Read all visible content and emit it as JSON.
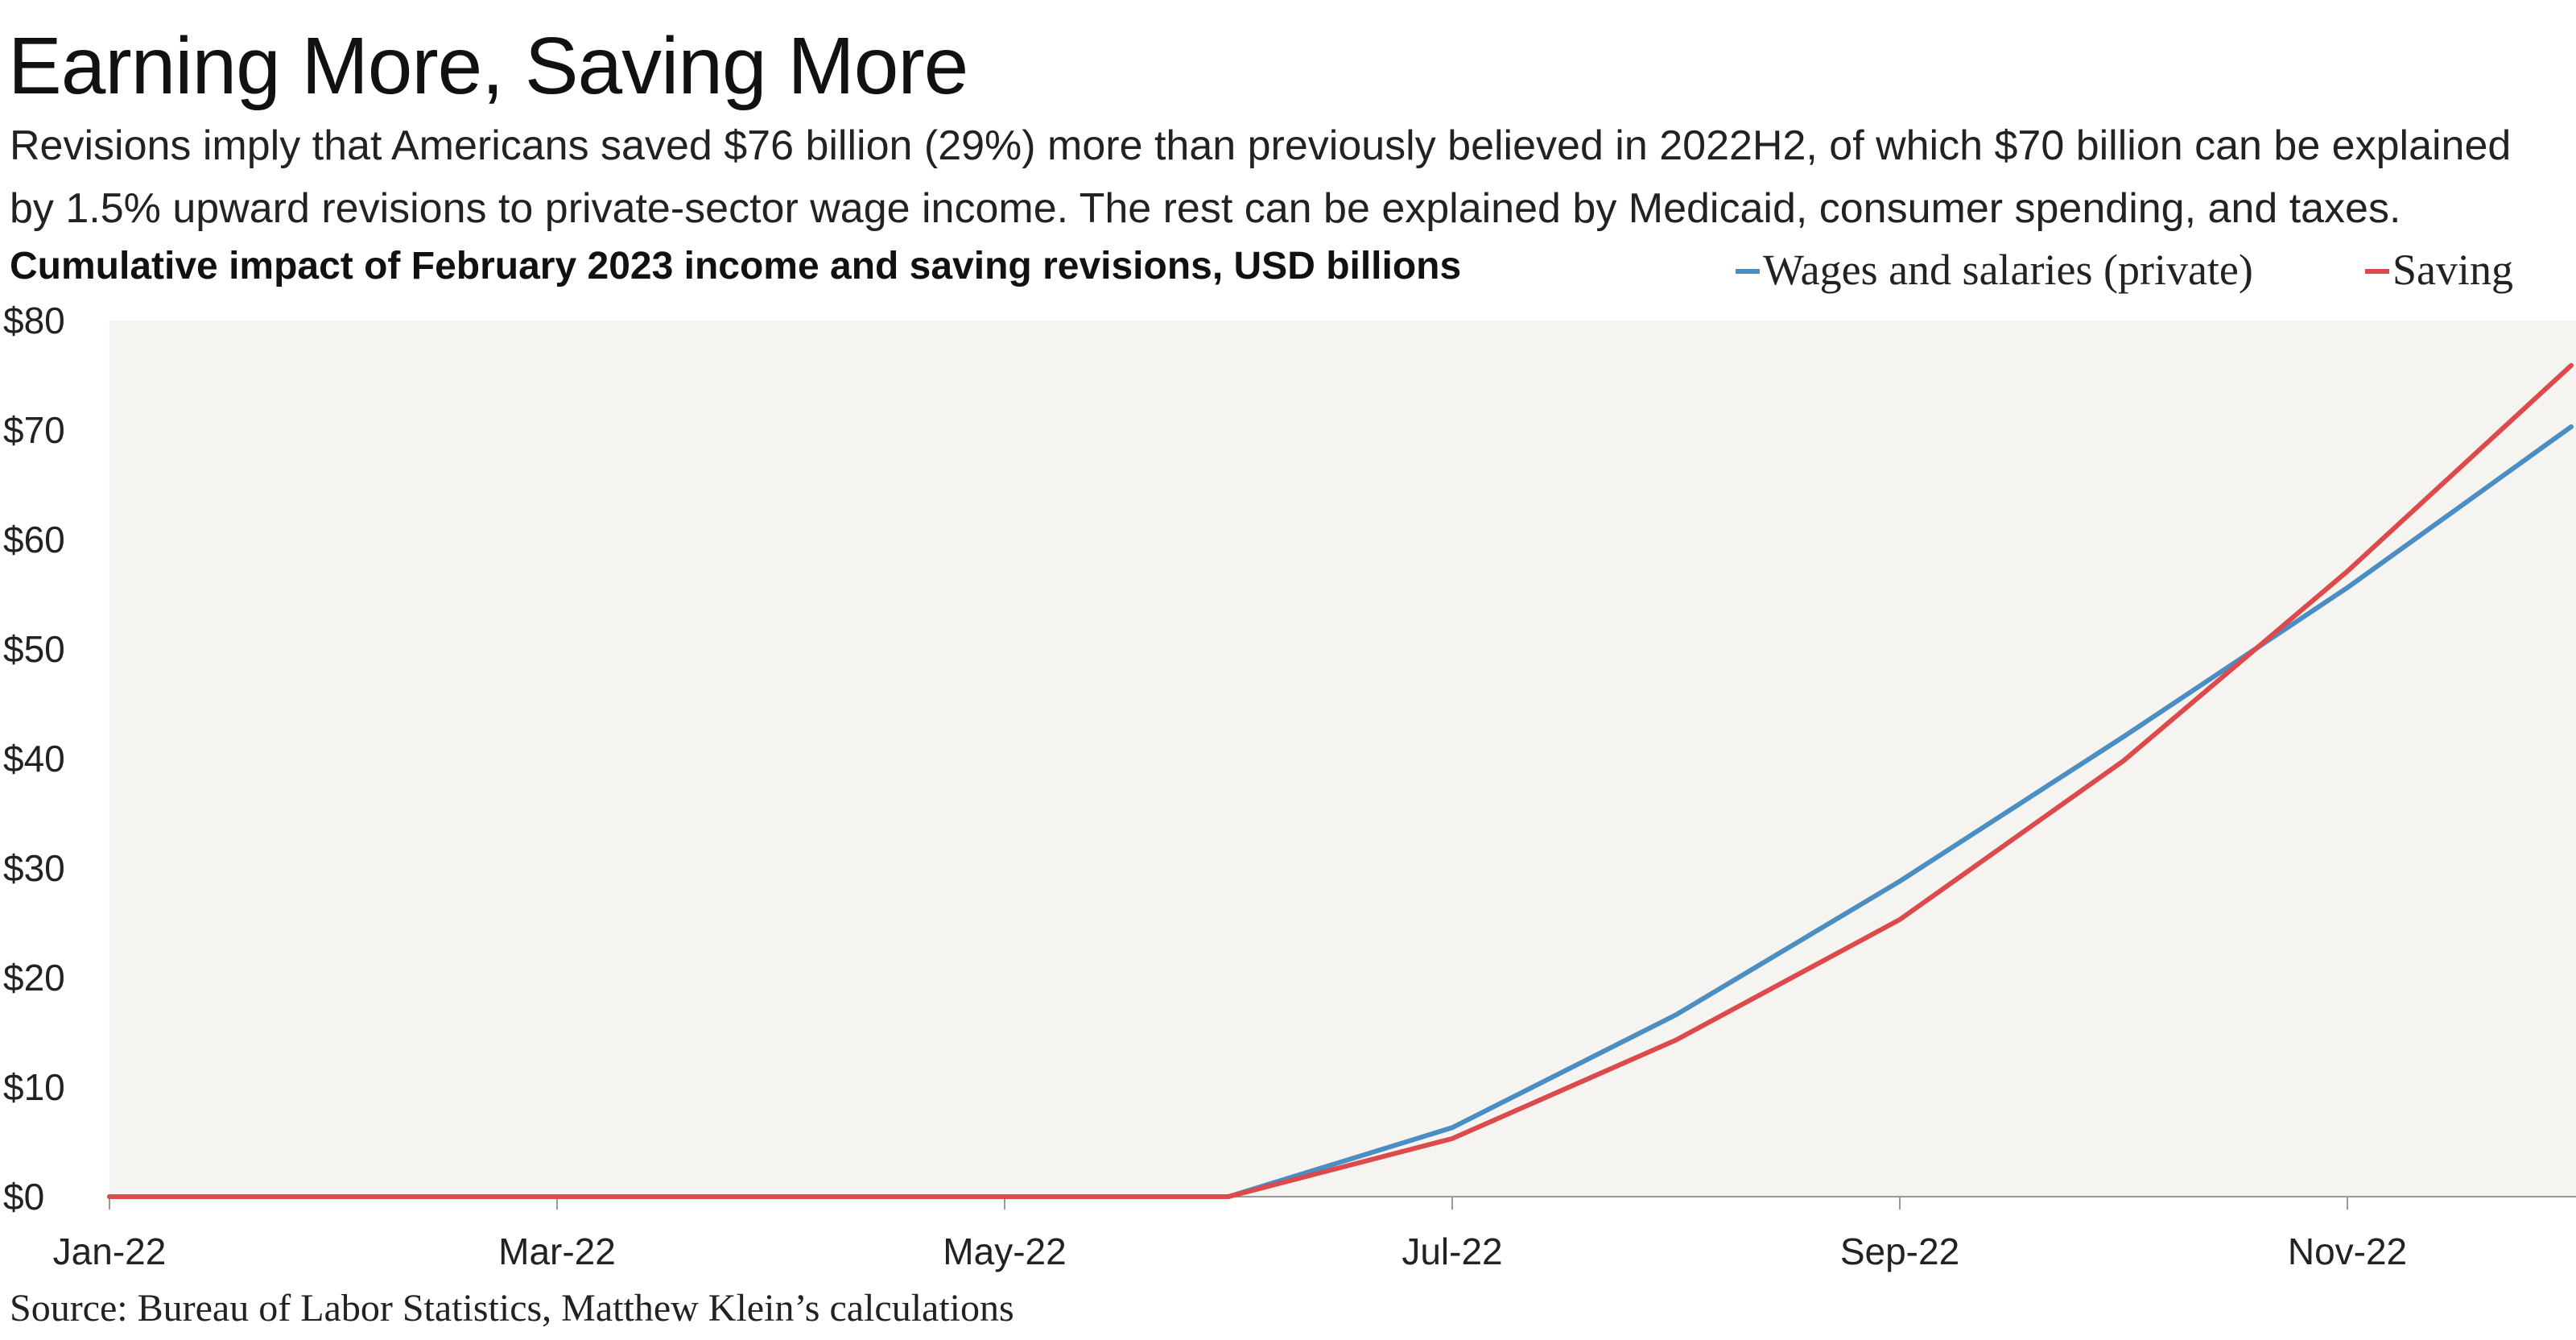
{
  "header": {
    "title": "Earning More, Saving More",
    "subtitle": "Revisions imply that Americans saved $76 billion (29%) more than previously believed in 2022H2, of which $70 billion can be explained by 1.5% upward revisions to private-sector wage income. The rest can be explained by Medicaid, consumer spending, and taxes."
  },
  "source": "Source: Bureau of Labor Statistics, Matthew Klein’s calculations",
  "colors": {
    "plot_background": "#f5f4f0",
    "wages": "#4a8ec4",
    "saving": "#dc4a4b"
  },
  "chart_data": {
    "type": "line",
    "title": "Cumulative impact of February 2023 income and saving revisions, USD billions",
    "xlabel": "",
    "ylabel": "",
    "x": [
      "Jan-22",
      "Feb-22",
      "Mar-22",
      "Apr-22",
      "May-22",
      "Jun-22",
      "Jul-22",
      "Aug-22",
      "Sep-22",
      "Oct-22",
      "Nov-22",
      "Dec-22"
    ],
    "x_tick_labels": [
      "Jan-22",
      "Mar-22",
      "May-22",
      "Jul-22",
      "Sep-22",
      "Nov-22"
    ],
    "y_tick_labels": [
      "$0",
      "$10",
      "$20",
      "$30",
      "$40",
      "$50",
      "$60",
      "$70",
      "$80"
    ],
    "ylim": [
      0,
      80
    ],
    "grid": false,
    "legend_position": "top-right",
    "series": [
      {
        "name": "Wages and salaries (private)",
        "color": "#4a8ec4",
        "values": [
          0,
          0,
          0,
          0,
          0,
          0,
          6.3,
          16.6,
          28.8,
          42.0,
          55.6,
          70.3
        ]
      },
      {
        "name": "Saving",
        "color": "#dc4a4b",
        "values": [
          0,
          0,
          0,
          0,
          0,
          0,
          5.3,
          14.3,
          25.3,
          39.8,
          57.1,
          75.9
        ]
      }
    ]
  }
}
